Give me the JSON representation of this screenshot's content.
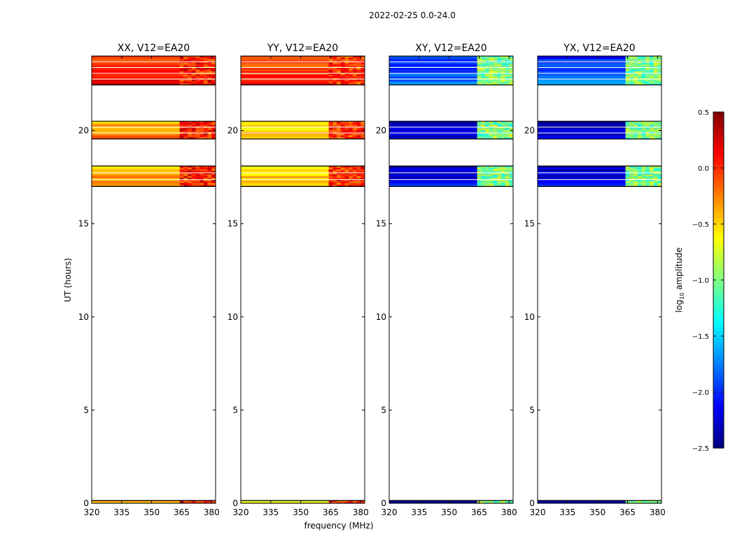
{
  "figure": {
    "suptitle": "2022-02-25 0.0-24.0",
    "xlabel": "frequency (MHz)",
    "ylabel": "UT (hours)",
    "colorbar_label_main": "log",
    "colorbar_label_sub": "10",
    "colorbar_label_tail": " amplitude"
  },
  "chart_data": {
    "type": "heatmap",
    "x_range": [
      320,
      382
    ],
    "y_range": [
      0,
      24
    ],
    "x_ticks": [
      320,
      335,
      350,
      365,
      380
    ],
    "x_tick_labels": [
      "320",
      "335",
      "350",
      "365",
      "380"
    ],
    "y_ticks": [
      0,
      5,
      10,
      15,
      20
    ],
    "y_tick_labels": [
      "0",
      "5",
      "10",
      "15",
      "20"
    ],
    "colorbar": {
      "range": [
        -2.5,
        0.5
      ],
      "ticks": [
        0.5,
        0.0,
        -0.5,
        -1.0,
        -1.5,
        -2.0,
        -2.5
      ],
      "tick_labels": [
        "0.5",
        "0.0",
        "−0.5",
        "−1.0",
        "−1.5",
        "−2.0",
        "−2.5"
      ],
      "colormap": "jet"
    },
    "data_bands_hours": [
      [
        0.0,
        0.15
      ],
      [
        17.0,
        18.1
      ],
      [
        19.55,
        20.5
      ],
      [
        22.45,
        24.0
      ]
    ],
    "rfi_freq_range_mhz": [
      364,
      381
    ],
    "panels": [
      {
        "title": "XX, V12=EA20",
        "base_levels": [
          -0.35,
          -0.3,
          -0.3,
          0.1
        ],
        "rfi_level": 0.05
      },
      {
        "title": "YY, V12=EA20",
        "base_levels": [
          -0.5,
          -0.45,
          -0.5,
          -0.05
        ],
        "rfi_level": 0.0
      },
      {
        "title": "XY, V12=EA20",
        "base_levels": [
          -2.3,
          -2.2,
          -2.3,
          -1.9
        ],
        "rfi_level": -1.0
      },
      {
        "title": "YX, V12=EA20",
        "base_levels": [
          -2.3,
          -2.2,
          -2.3,
          -1.9
        ],
        "rfi_level": -1.0
      }
    ]
  }
}
